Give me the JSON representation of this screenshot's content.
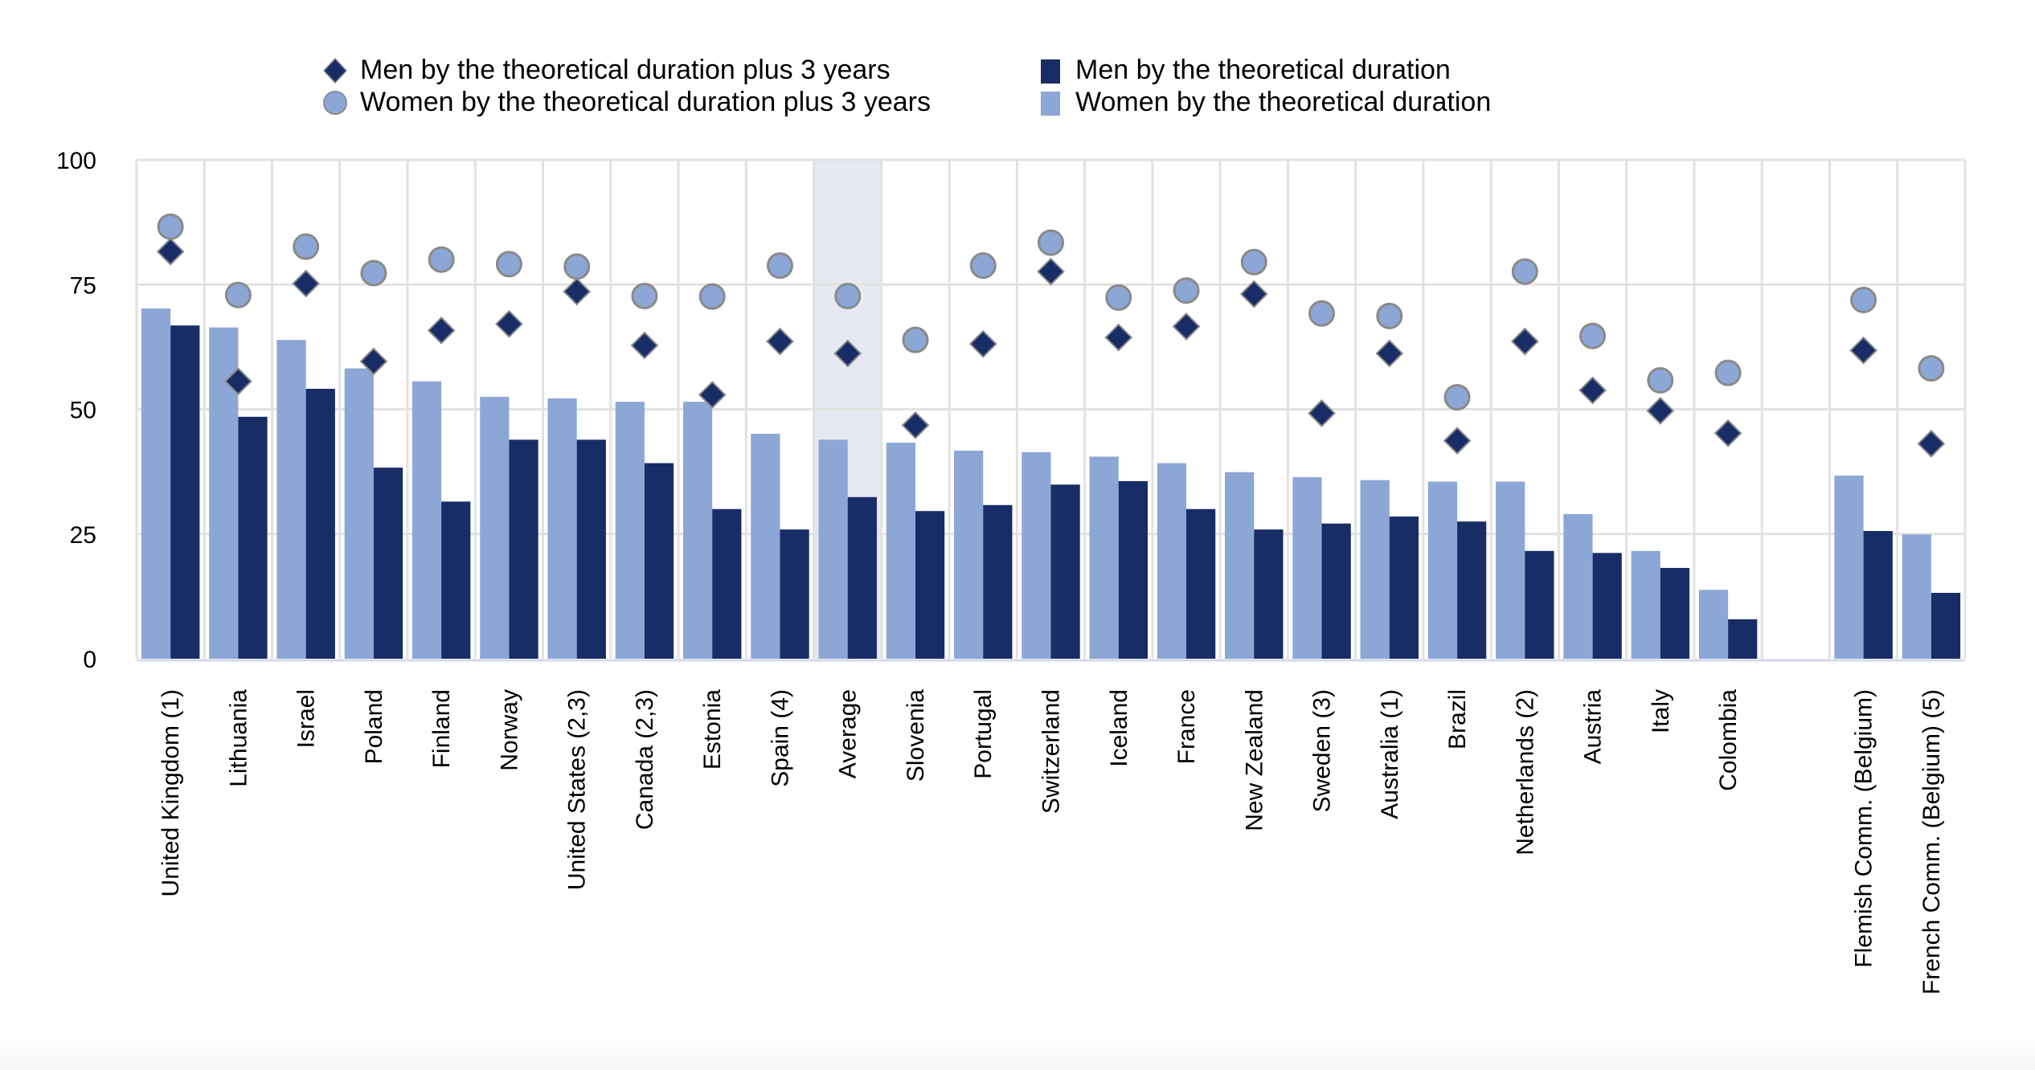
{
  "chart_data": {
    "type": "bar",
    "title": "",
    "xlabel": "",
    "ylabel": "",
    "ylim": [
      0,
      100
    ],
    "yticks": [
      0,
      25,
      50,
      75,
      100
    ],
    "grid": true,
    "legend_position": "top-center",
    "highlighted_category": "Average",
    "categories": [
      "United Kingdom (1)",
      "Lithuania",
      "Israel",
      "Poland",
      "Finland",
      "Norway",
      "United States (2,3)",
      "Canada (2,3)",
      "Estonia",
      "Spain (4)",
      "Average",
      "Slovenia",
      "Portugal",
      "Switzerland",
      "Iceland",
      "France",
      "New Zealand",
      "Sweden (3)",
      "Australia (1)",
      "Brazil",
      "Netherlands (2)",
      "Austria",
      "Italy",
      "Colombia",
      "",
      "Flemish Comm. (Belgium)",
      "French Comm. (Belgium) (5)"
    ],
    "series": [
      {
        "name": "Women by the theoretical duration",
        "type": "bar",
        "color": "#8ca7d6",
        "values": [
          70.2,
          66.4,
          63.9,
          58.2,
          55.6,
          52.5,
          52.2,
          51.5,
          51.5,
          45.1,
          43.9,
          43.3,
          41.7,
          41.4,
          40.5,
          39.2,
          37.4,
          36.4,
          35.8,
          35.5,
          35.5,
          29.0,
          21.6,
          13.8,
          null,
          36.7,
          24.9
        ]
      },
      {
        "name": "Men by the theoretical duration",
        "type": "bar",
        "color": "#182d66",
        "values": [
          66.8,
          48.5,
          54.1,
          38.3,
          31.5,
          43.9,
          43.9,
          39.2,
          30.0,
          25.9,
          32.4,
          29.6,
          30.8,
          34.9,
          35.6,
          30.0,
          25.9,
          27.1,
          28.5,
          27.5,
          21.6,
          21.2,
          18.2,
          7.9,
          null,
          25.6,
          13.2
        ]
      },
      {
        "name": "Men by the theoretical duration plus 3 years",
        "type": "scatter",
        "marker": "diamond",
        "color": "#182d66",
        "values": [
          81.6,
          55.6,
          75.2,
          59.6,
          65.8,
          67.1,
          73.6,
          62.8,
          52.9,
          63.6,
          61.2,
          46.8,
          63.1,
          77.6,
          64.4,
          66.6,
          73.1,
          49.2,
          61.2,
          43.7,
          63.6,
          53.8,
          49.7,
          45.2,
          null,
          61.8,
          43.1
        ]
      },
      {
        "name": "Women by the theoretical duration plus 3 years",
        "type": "scatter",
        "marker": "circle",
        "color": "#8ca7d6",
        "values": [
          86.6,
          72.9,
          82.6,
          77.3,
          80.0,
          79.1,
          78.6,
          72.7,
          72.6,
          78.8,
          72.7,
          63.9,
          78.8,
          83.4,
          72.4,
          73.8,
          79.5,
          69.2,
          68.7,
          52.4,
          77.6,
          64.7,
          55.8,
          57.3,
          null,
          71.9,
          58.2
        ]
      }
    ]
  },
  "legend": [
    {
      "label": "Men by the theoretical duration plus 3 years",
      "marker": "diamond",
      "color": "#182d66"
    },
    {
      "label": "Women by the theoretical duration plus 3 years",
      "marker": "circle",
      "color": "#8ca7d6"
    },
    {
      "label": "Men by the theoretical duration",
      "marker": "square",
      "color": "#182d66"
    },
    {
      "label": "Women by the theoretical duration",
      "marker": "square",
      "color": "#8ca7d6"
    }
  ],
  "colors": {
    "grid": "#e2e2e2",
    "highlight": "#e6e9f2",
    "marker_stroke": "#8a8a8a",
    "axis": "#d4d9ea"
  }
}
